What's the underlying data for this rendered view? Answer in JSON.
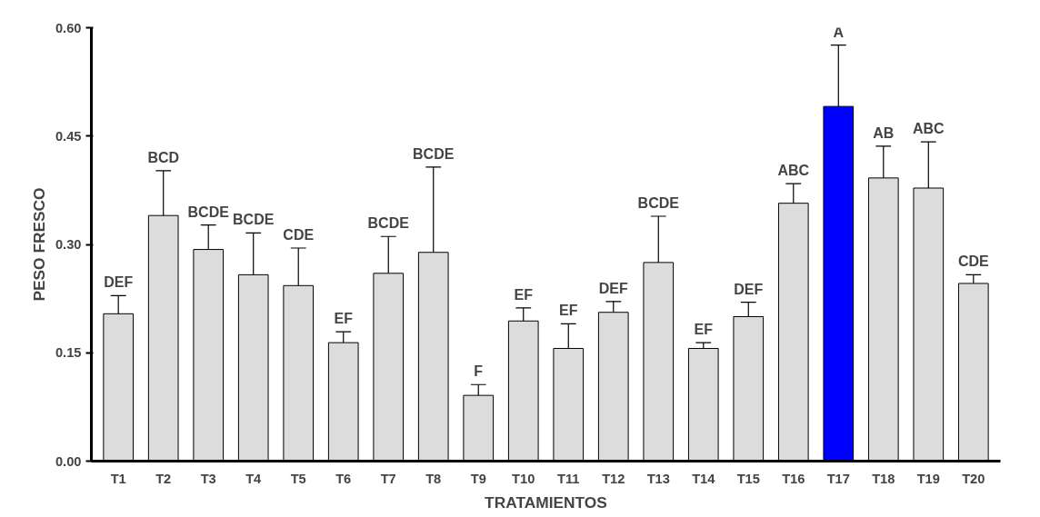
{
  "chart_data": {
    "type": "bar",
    "xlabel": "TRATAMIENTOS",
    "ylabel": "PESO FRESCO",
    "categories": [
      "T1",
      "T2",
      "T3",
      "T4",
      "T5",
      "T6",
      "T7",
      "T8",
      "T9",
      "T10",
      "T11",
      "T12",
      "T13",
      "T14",
      "T15",
      "T16",
      "T17",
      "T18",
      "T19",
      "T20"
    ],
    "values": [
      0.204,
      0.34,
      0.293,
      0.258,
      0.243,
      0.164,
      0.26,
      0.289,
      0.091,
      0.194,
      0.156,
      0.206,
      0.275,
      0.156,
      0.2,
      0.357,
      0.491,
      0.392,
      0.378,
      0.246
    ],
    "errors": [
      [
        0.204,
        0.229
      ],
      [
        0.34,
        0.402
      ],
      [
        0.293,
        0.327
      ],
      [
        0.258,
        0.316
      ],
      [
        0.243,
        0.295
      ],
      [
        0.164,
        0.179
      ],
      [
        0.26,
        0.311
      ],
      [
        0.289,
        0.407
      ],
      [
        0.091,
        0.106
      ],
      [
        0.194,
        0.212
      ],
      [
        0.156,
        0.19
      ],
      [
        0.206,
        0.221
      ],
      [
        0.275,
        0.339
      ],
      [
        0.156,
        0.164
      ],
      [
        0.2,
        0.22
      ],
      [
        0.357,
        0.384
      ],
      [
        0.491,
        0.576
      ],
      [
        0.392,
        0.436
      ],
      [
        0.378,
        0.442
      ],
      [
        0.246,
        0.258
      ]
    ],
    "colors": [
      "#dcdcdc",
      "#dcdcdc",
      "#dcdcdc",
      "#dcdcdc",
      "#dcdcdc",
      "#dcdcdc",
      "#dcdcdc",
      "#dcdcdc",
      "#dcdcdc",
      "#dcdcdc",
      "#dcdcdc",
      "#dcdcdc",
      "#dcdcdc",
      "#dcdcdc",
      "#dcdcdc",
      "#dcdcdc",
      "#0000ff",
      "#dcdcdc",
      "#dcdcdc",
      "#dcdcdc"
    ],
    "annotations": [
      {
        "text": "DEF",
        "x": "T1",
        "y": 0.229
      },
      {
        "text": "BCD",
        "x": "T2",
        "y": 0.402
      },
      {
        "text": "BCDE",
        "x": "T3",
        "y": 0.327
      },
      {
        "text": "BCDE",
        "x": "T4",
        "y": 0.316
      },
      {
        "text": "CDE",
        "x": "T5",
        "y": 0.295
      },
      {
        "text": "EF",
        "x": "T6",
        "y": 0.179
      },
      {
        "text": "BCDE",
        "x": "T7",
        "y": 0.311
      },
      {
        "text": "BCDE",
        "x": "T8",
        "y": 0.407
      },
      {
        "text": "F",
        "x": "T9",
        "y": 0.106
      },
      {
        "text": "EF",
        "x": "T10",
        "y": 0.212
      },
      {
        "text": "EF",
        "x": "T11",
        "y": 0.19
      },
      {
        "text": "DEF",
        "x": "T12",
        "y": 0.221
      },
      {
        "text": "BCDE",
        "x": "T13",
        "y": 0.339
      },
      {
        "text": "EF",
        "x": "T14",
        "y": 0.164
      },
      {
        "text": "DEF",
        "x": "T15",
        "y": 0.22
      },
      {
        "text": "ABC",
        "x": "T16",
        "y": 0.384
      },
      {
        "text": "A",
        "x": "T17",
        "y": 0.576
      },
      {
        "text": "AB",
        "x": "T18",
        "y": 0.436
      },
      {
        "text": "ABC",
        "x": "T19",
        "y": 0.442
      },
      {
        "text": "CDE",
        "x": "T20",
        "y": 0.258
      }
    ],
    "ylim": [
      0,
      0.6
    ],
    "yticks": [
      {
        "value": 0,
        "label": "0.00"
      },
      {
        "value": 0.15,
        "label": "0.15"
      },
      {
        "value": 0.3,
        "label": "0.30"
      },
      {
        "value": 0.45,
        "label": "0.45"
      },
      {
        "value": 0.6,
        "label": "0.60"
      }
    ],
    "grid": false
  }
}
